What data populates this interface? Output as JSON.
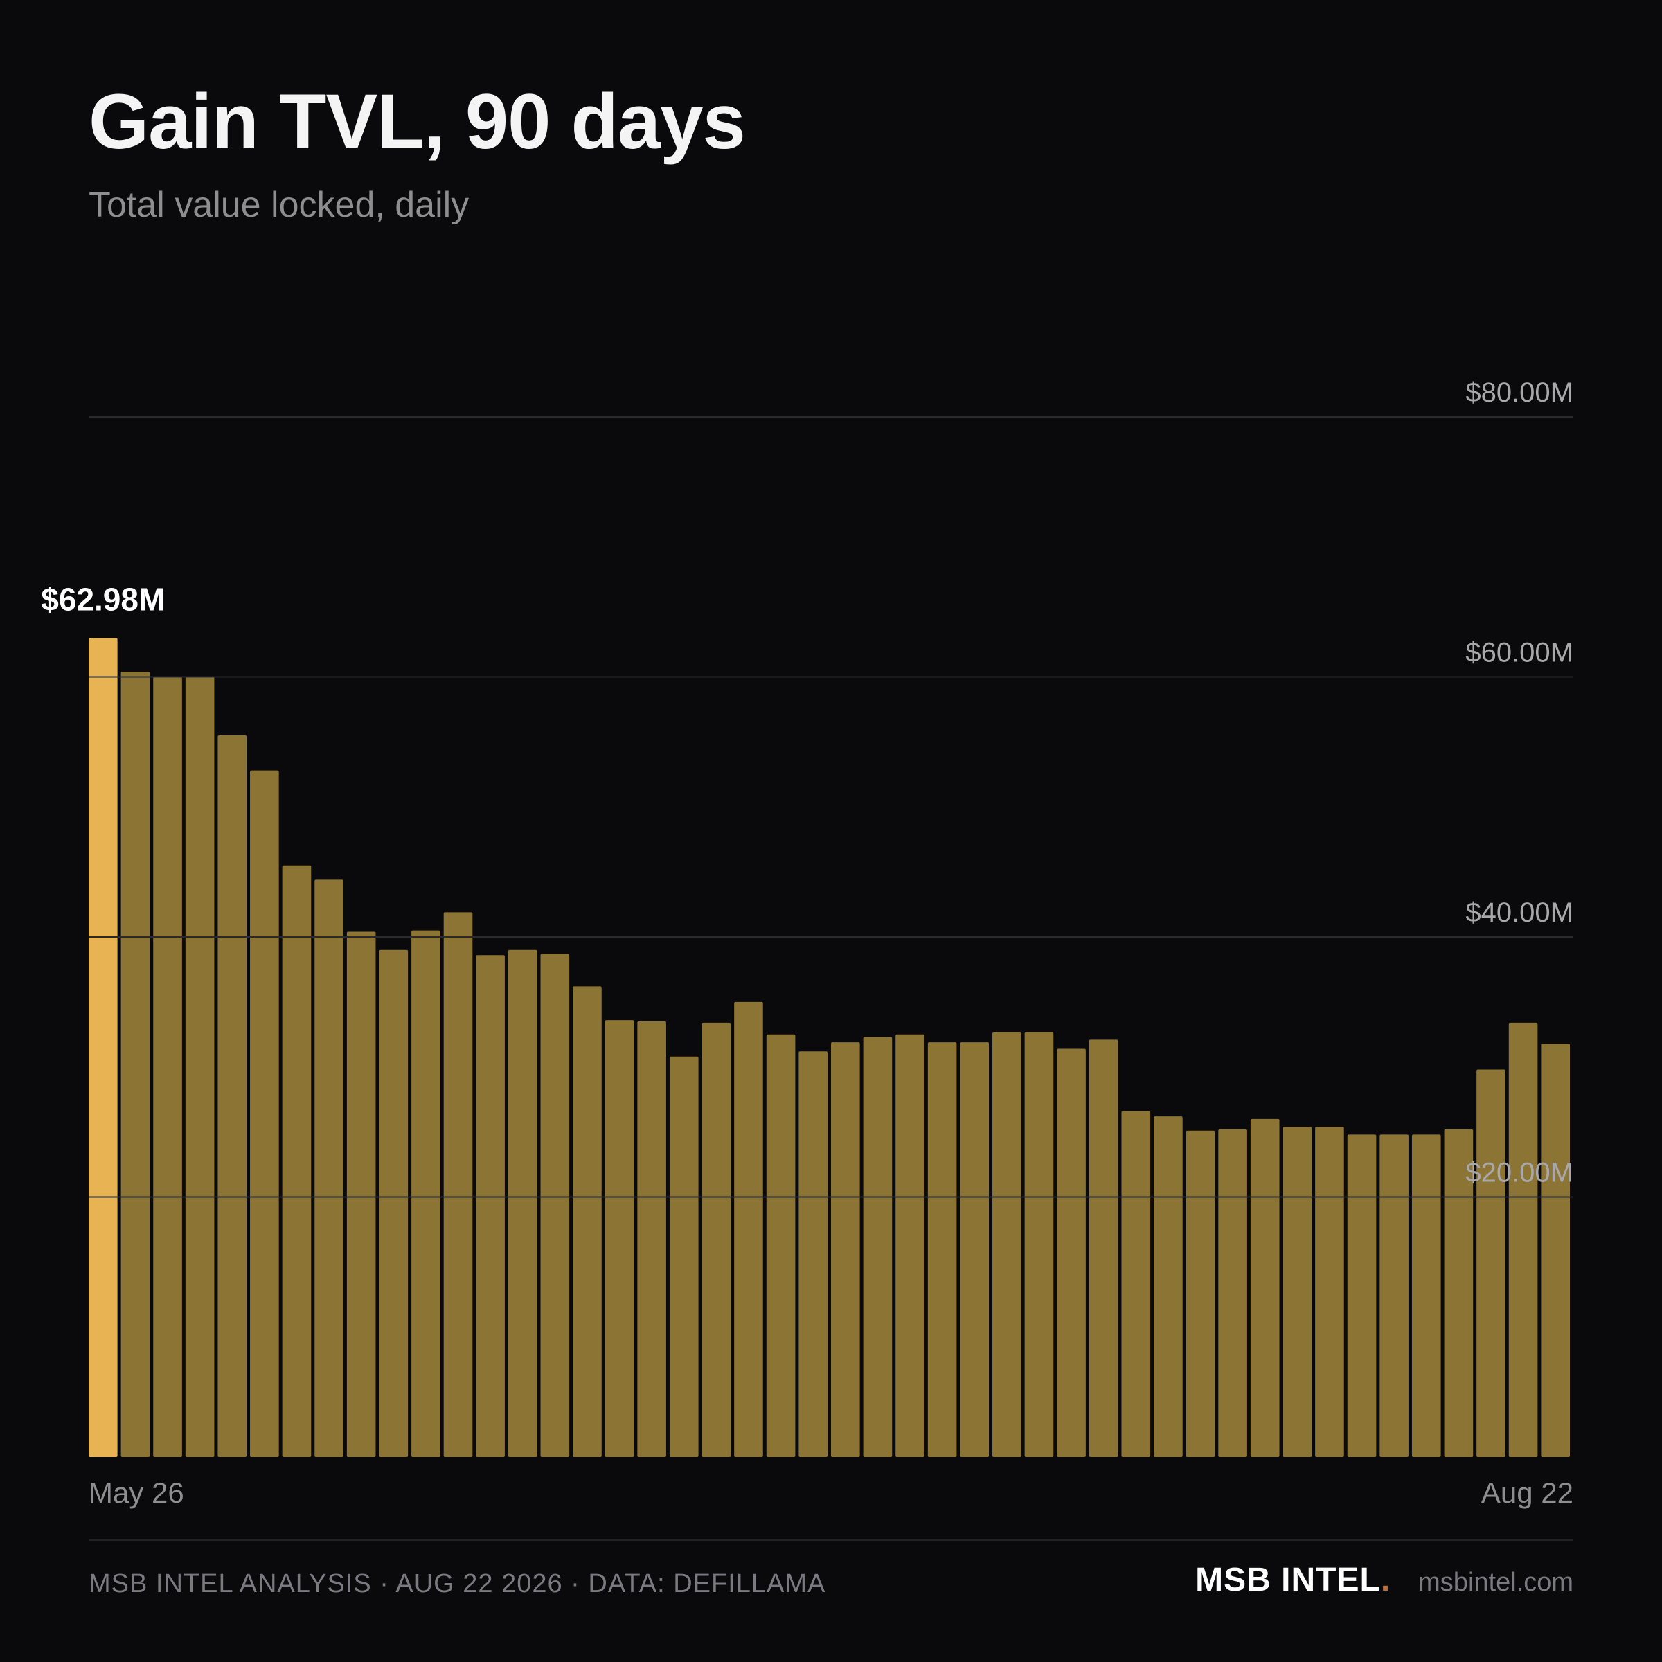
{
  "header": {
    "title": "Gain TVL, 90 days",
    "subtitle": "Total value locked, daily"
  },
  "footer": {
    "credit": "MSB INTEL ANALYSIS · AUG 22 2026 · DATA: DEFILLAMA",
    "brand": "MSB INTEL",
    "brand_dot": ".",
    "site": "msbintel.com"
  },
  "colors": {
    "bar": "#8c7434",
    "highlight_bar": "#e8b352",
    "grid": "#2a2a2e",
    "tick_text": "#a8a8ac",
    "background": "#0a0a0c"
  },
  "chart_data": {
    "type": "bar",
    "title": "Gain TVL, 90 days",
    "subtitle": "Total value locked, daily",
    "unit": "USD millions",
    "ylim": [
      0,
      80
    ],
    "yticks": [
      {
        "value": 20,
        "label": "$20.00M"
      },
      {
        "value": 40,
        "label": "$40.00M"
      },
      {
        "value": 60,
        "label": "$60.00M"
      },
      {
        "value": 80,
        "label": "$80.00M"
      }
    ],
    "x_start_label": "May 26",
    "x_end_label": "Aug 22",
    "grid": true,
    "highlight": {
      "index": 0,
      "label": "$62.98M"
    },
    "values": [
      62.98,
      60.4,
      60.0,
      60.0,
      55.5,
      52.8,
      45.5,
      44.4,
      40.4,
      39.0,
      40.5,
      41.9,
      38.6,
      39.0,
      38.7,
      36.2,
      33.6,
      33.5,
      30.8,
      33.4,
      35.0,
      32.5,
      31.2,
      31.9,
      32.3,
      32.5,
      31.9,
      31.9,
      32.7,
      32.7,
      31.4,
      32.1,
      26.6,
      26.2,
      25.1,
      25.2,
      26.0,
      25.4,
      25.4,
      24.8,
      24.8,
      24.8,
      25.2,
      29.8,
      33.4,
      31.8
    ]
  }
}
